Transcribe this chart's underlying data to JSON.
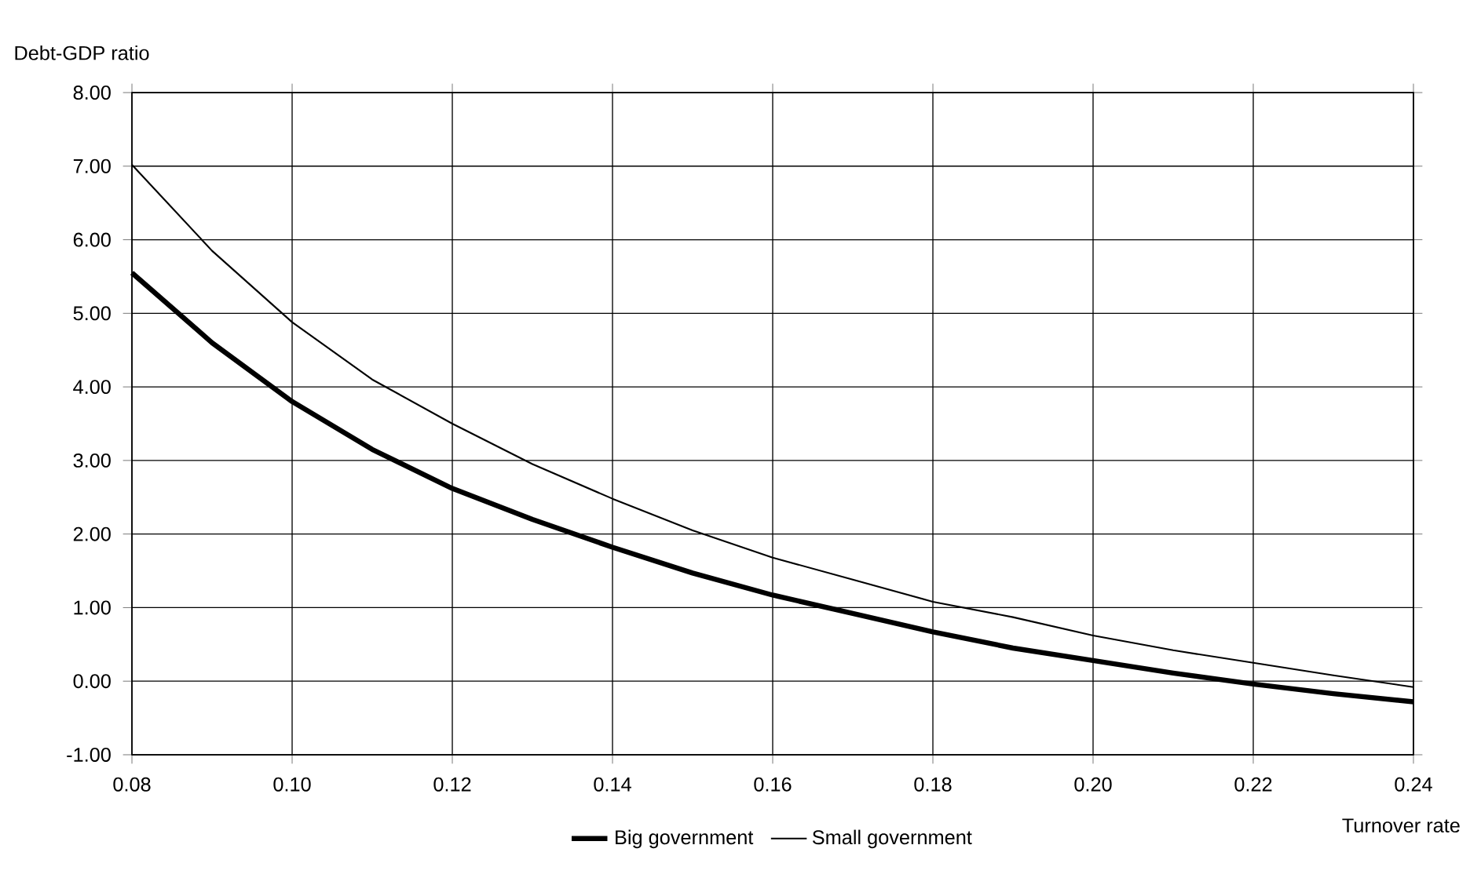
{
  "chart_data": {
    "type": "line",
    "xlabel": "Turnover rate",
    "ylabel": "Debt-GDP ratio",
    "x": [
      0.08,
      0.09,
      0.1,
      0.11,
      0.12,
      0.13,
      0.14,
      0.15,
      0.16,
      0.17,
      0.18,
      0.19,
      0.2,
      0.21,
      0.22,
      0.23,
      0.24
    ],
    "series": [
      {
        "name": "Big government",
        "color": "#000000",
        "values": [
          5.55,
          4.6,
          3.8,
          3.15,
          2.62,
          2.2,
          1.82,
          1.47,
          1.17,
          0.92,
          0.67,
          0.45,
          0.28,
          0.11,
          -0.04,
          -0.17,
          -0.28
        ]
      },
      {
        "name": "Small government",
        "color": "#000000",
        "values": [
          7.02,
          5.85,
          4.88,
          4.1,
          3.5,
          2.95,
          2.48,
          2.05,
          1.68,
          1.38,
          1.08,
          0.87,
          0.62,
          0.42,
          0.25,
          0.08,
          -0.08
        ]
      }
    ],
    "xlim": [
      0.08,
      0.24
    ],
    "ylim": [
      -1,
      8
    ],
    "xticks": [
      {
        "value": 0.08,
        "label": "0.08"
      },
      {
        "value": 0.1,
        "label": "0.10"
      },
      {
        "value": 0.12,
        "label": "0.12"
      },
      {
        "value": 0.14,
        "label": "0.14"
      },
      {
        "value": 0.16,
        "label": "0.16"
      },
      {
        "value": 0.18,
        "label": "0.18"
      },
      {
        "value": 0.2,
        "label": "0.20"
      },
      {
        "value": 0.22,
        "label": "0.22"
      },
      {
        "value": 0.24,
        "label": "0.24"
      }
    ],
    "yticks": [
      {
        "value": -1,
        "label": "-1.00"
      },
      {
        "value": 0,
        "label": "0.00"
      },
      {
        "value": 1,
        "label": "1.00"
      },
      {
        "value": 2,
        "label": "2.00"
      },
      {
        "value": 3,
        "label": "3.00"
      },
      {
        "value": 4,
        "label": "4.00"
      },
      {
        "value": 5,
        "label": "5.00"
      },
      {
        "value": 6,
        "label": "6.00"
      },
      {
        "value": 7,
        "label": "7.00"
      },
      {
        "value": 8,
        "label": "8.00"
      }
    ],
    "grid": true,
    "legend": "bottom",
    "marker": "none",
    "line_style": "solid"
  }
}
